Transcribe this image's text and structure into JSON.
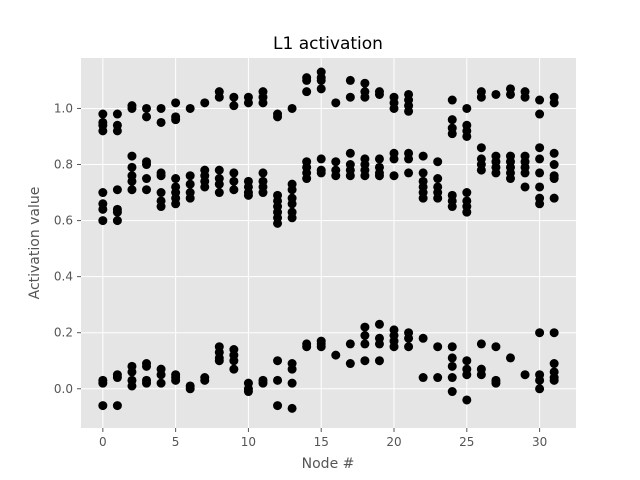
{
  "chart_data": {
    "type": "scatter",
    "title": "L1 activation",
    "xlabel": "Node #",
    "ylabel": "Activation value",
    "xlim": [
      -1.5,
      32.5
    ],
    "ylim": [
      -0.14,
      1.18
    ],
    "xticks": [
      0,
      5,
      10,
      15,
      20,
      25,
      30
    ],
    "yticks": [
      0.0,
      0.2,
      0.4,
      0.6,
      0.8,
      1.0
    ],
    "xtick_labels": [
      "0",
      "5",
      "10",
      "15",
      "20",
      "25",
      "30"
    ],
    "ytick_labels": [
      "0.0",
      "0.2",
      "0.4",
      "0.6",
      "0.8",
      "1.0"
    ],
    "grid": true,
    "background_color": "#e5e5e5",
    "marker_color": "#000000",
    "points": [
      [
        0,
        0.98
      ],
      [
        0,
        0.95
      ],
      [
        0,
        0.94
      ],
      [
        0,
        0.92
      ],
      [
        0,
        0.7
      ],
      [
        0,
        0.66
      ],
      [
        0,
        0.64
      ],
      [
        0,
        0.6
      ],
      [
        0,
        0.03
      ],
      [
        0,
        0.02
      ],
      [
        0,
        -0.06
      ],
      [
        1,
        0.98
      ],
      [
        1,
        0.94
      ],
      [
        1,
        0.92
      ],
      [
        1,
        0.71
      ],
      [
        1,
        0.64
      ],
      [
        1,
        0.63
      ],
      [
        1,
        0.6
      ],
      [
        1,
        0.05
      ],
      [
        1,
        0.04
      ],
      [
        1,
        -0.06
      ],
      [
        2,
        1.01
      ],
      [
        2,
        1.0
      ],
      [
        2,
        0.83
      ],
      [
        2,
        0.79
      ],
      [
        2,
        0.76
      ],
      [
        2,
        0.74
      ],
      [
        2,
        0.71
      ],
      [
        2,
        0.08
      ],
      [
        2,
        0.06
      ],
      [
        2,
        0.03
      ],
      [
        2,
        0.01
      ],
      [
        3,
        1.0
      ],
      [
        3,
        0.97
      ],
      [
        3,
        0.81
      ],
      [
        3,
        0.8
      ],
      [
        3,
        0.75
      ],
      [
        3,
        0.71
      ],
      [
        3,
        0.09
      ],
      [
        3,
        0.08
      ],
      [
        3,
        0.03
      ],
      [
        3,
        0.02
      ],
      [
        4,
        1.0
      ],
      [
        4,
        0.95
      ],
      [
        4,
        0.77
      ],
      [
        4,
        0.76
      ],
      [
        4,
        0.7
      ],
      [
        4,
        0.67
      ],
      [
        4,
        0.65
      ],
      [
        4,
        0.07
      ],
      [
        4,
        0.05
      ],
      [
        4,
        0.02
      ],
      [
        5,
        1.02
      ],
      [
        5,
        0.97
      ],
      [
        5,
        0.96
      ],
      [
        5,
        0.75
      ],
      [
        5,
        0.72
      ],
      [
        5,
        0.7
      ],
      [
        5,
        0.68
      ],
      [
        5,
        0.66
      ],
      [
        5,
        0.05
      ],
      [
        5,
        0.04
      ],
      [
        5,
        0.03
      ],
      [
        6,
        1.0
      ],
      [
        6,
        0.76
      ],
      [
        6,
        0.73
      ],
      [
        6,
        0.7
      ],
      [
        6,
        0.68
      ],
      [
        6,
        0.01
      ],
      [
        6,
        0.0
      ],
      [
        7,
        1.02
      ],
      [
        7,
        0.78
      ],
      [
        7,
        0.76
      ],
      [
        7,
        0.74
      ],
      [
        7,
        0.72
      ],
      [
        7,
        0.04
      ],
      [
        7,
        0.03
      ],
      [
        8,
        1.06
      ],
      [
        8,
        1.04
      ],
      [
        8,
        0.78
      ],
      [
        8,
        0.75
      ],
      [
        8,
        0.73
      ],
      [
        8,
        0.7
      ],
      [
        8,
        0.15
      ],
      [
        8,
        0.13
      ],
      [
        8,
        0.11
      ],
      [
        8,
        0.1
      ],
      [
        9,
        1.04
      ],
      [
        9,
        1.01
      ],
      [
        9,
        0.77
      ],
      [
        9,
        0.74
      ],
      [
        9,
        0.71
      ],
      [
        9,
        0.14
      ],
      [
        9,
        0.12
      ],
      [
        9,
        0.1
      ],
      [
        9,
        0.07
      ],
      [
        10,
        1.04
      ],
      [
        10,
        1.02
      ],
      [
        10,
        0.74
      ],
      [
        10,
        0.72
      ],
      [
        10,
        0.7
      ],
      [
        10,
        0.69
      ],
      [
        10,
        0.02
      ],
      [
        10,
        0.0
      ],
      [
        10,
        -0.01
      ],
      [
        11,
        1.06
      ],
      [
        11,
        1.04
      ],
      [
        11,
        1.02
      ],
      [
        11,
        0.77
      ],
      [
        11,
        0.74
      ],
      [
        11,
        0.72
      ],
      [
        11,
        0.7
      ],
      [
        11,
        0.03
      ],
      [
        11,
        0.02
      ],
      [
        12,
        0.98
      ],
      [
        12,
        0.97
      ],
      [
        12,
        0.69
      ],
      [
        12,
        0.67
      ],
      [
        12,
        0.65
      ],
      [
        12,
        0.63
      ],
      [
        12,
        0.61
      ],
      [
        12,
        0.59
      ],
      [
        12,
        0.1
      ],
      [
        12,
        0.03
      ],
      [
        12,
        -0.06
      ],
      [
        13,
        1.0
      ],
      [
        13,
        0.73
      ],
      [
        13,
        0.71
      ],
      [
        13,
        0.68
      ],
      [
        13,
        0.66
      ],
      [
        13,
        0.63
      ],
      [
        13,
        0.61
      ],
      [
        13,
        0.09
      ],
      [
        13,
        0.07
      ],
      [
        13,
        0.02
      ],
      [
        13,
        -0.07
      ],
      [
        14,
        1.11
      ],
      [
        14,
        1.1
      ],
      [
        14,
        1.06
      ],
      [
        14,
        0.81
      ],
      [
        14,
        0.79
      ],
      [
        14,
        0.77
      ],
      [
        14,
        0.75
      ],
      [
        14,
        0.16
      ],
      [
        14,
        0.15
      ],
      [
        15,
        1.13
      ],
      [
        15,
        1.11
      ],
      [
        15,
        1.1
      ],
      [
        15,
        1.07
      ],
      [
        15,
        0.82
      ],
      [
        15,
        0.78
      ],
      [
        15,
        0.77
      ],
      [
        15,
        0.17
      ],
      [
        15,
        0.16
      ],
      [
        15,
        0.15
      ],
      [
        16,
        1.02
      ],
      [
        16,
        0.81
      ],
      [
        16,
        0.78
      ],
      [
        16,
        0.76
      ],
      [
        16,
        0.12
      ],
      [
        17,
        1.1
      ],
      [
        17,
        1.04
      ],
      [
        17,
        0.84
      ],
      [
        17,
        0.8
      ],
      [
        17,
        0.78
      ],
      [
        17,
        0.76
      ],
      [
        17,
        0.16
      ],
      [
        17,
        0.09
      ],
      [
        18,
        1.09
      ],
      [
        18,
        1.06
      ],
      [
        18,
        1.04
      ],
      [
        18,
        0.82
      ],
      [
        18,
        0.8
      ],
      [
        18,
        0.78
      ],
      [
        18,
        0.76
      ],
      [
        18,
        0.22
      ],
      [
        18,
        0.19
      ],
      [
        18,
        0.16
      ],
      [
        18,
        0.1
      ],
      [
        19,
        1.06
      ],
      [
        19,
        1.05
      ],
      [
        19,
        0.82
      ],
      [
        19,
        0.79
      ],
      [
        19,
        0.77
      ],
      [
        19,
        0.76
      ],
      [
        19,
        0.23
      ],
      [
        19,
        0.18
      ],
      [
        19,
        0.16
      ],
      [
        19,
        0.1
      ],
      [
        20,
        1.04
      ],
      [
        20,
        1.02
      ],
      [
        20,
        1.0
      ],
      [
        20,
        0.84
      ],
      [
        20,
        0.82
      ],
      [
        20,
        0.76
      ],
      [
        20,
        0.21
      ],
      [
        20,
        0.19
      ],
      [
        20,
        0.17
      ],
      [
        20,
        0.15
      ],
      [
        21,
        1.05
      ],
      [
        21,
        1.03
      ],
      [
        21,
        1.01
      ],
      [
        21,
        0.99
      ],
      [
        21,
        0.84
      ],
      [
        21,
        0.82
      ],
      [
        21,
        0.77
      ],
      [
        21,
        0.2
      ],
      [
        21,
        0.18
      ],
      [
        21,
        0.15
      ],
      [
        22,
        0.83
      ],
      [
        22,
        0.77
      ],
      [
        22,
        0.74
      ],
      [
        22,
        0.72
      ],
      [
        22,
        0.7
      ],
      [
        22,
        0.68
      ],
      [
        22,
        0.18
      ],
      [
        22,
        0.04
      ],
      [
        23,
        0.81
      ],
      [
        23,
        0.75
      ],
      [
        23,
        0.72
      ],
      [
        23,
        0.7
      ],
      [
        23,
        0.68
      ],
      [
        23,
        0.15
      ],
      [
        23,
        0.04
      ],
      [
        24,
        1.03
      ],
      [
        24,
        0.96
      ],
      [
        24,
        0.93
      ],
      [
        24,
        0.91
      ],
      [
        24,
        0.69
      ],
      [
        24,
        0.67
      ],
      [
        24,
        0.65
      ],
      [
        24,
        0.15
      ],
      [
        24,
        0.11
      ],
      [
        24,
        0.08
      ],
      [
        24,
        0.04
      ],
      [
        24,
        -0.01
      ],
      [
        25,
        1.0
      ],
      [
        25,
        0.94
      ],
      [
        25,
        0.92
      ],
      [
        25,
        0.9
      ],
      [
        25,
        0.7
      ],
      [
        25,
        0.67
      ],
      [
        25,
        0.65
      ],
      [
        25,
        0.63
      ],
      [
        25,
        0.1
      ],
      [
        25,
        0.07
      ],
      [
        25,
        0.05
      ],
      [
        25,
        -0.04
      ],
      [
        26,
        1.06
      ],
      [
        26,
        1.04
      ],
      [
        26,
        0.86
      ],
      [
        26,
        0.82
      ],
      [
        26,
        0.8
      ],
      [
        26,
        0.78
      ],
      [
        26,
        0.16
      ],
      [
        26,
        0.07
      ],
      [
        26,
        0.05
      ],
      [
        27,
        1.05
      ],
      [
        27,
        0.83
      ],
      [
        27,
        0.81
      ],
      [
        27,
        0.79
      ],
      [
        27,
        0.77
      ],
      [
        27,
        0.15
      ],
      [
        27,
        0.03
      ],
      [
        27,
        0.02
      ],
      [
        28,
        1.07
      ],
      [
        28,
        1.05
      ],
      [
        28,
        0.83
      ],
      [
        28,
        0.81
      ],
      [
        28,
        0.79
      ],
      [
        28,
        0.77
      ],
      [
        28,
        0.75
      ],
      [
        28,
        0.11
      ],
      [
        29,
        1.06
      ],
      [
        29,
        1.04
      ],
      [
        29,
        0.83
      ],
      [
        29,
        0.81
      ],
      [
        29,
        0.79
      ],
      [
        29,
        0.77
      ],
      [
        29,
        0.72
      ],
      [
        29,
        0.05
      ],
      [
        30,
        1.03
      ],
      [
        30,
        0.98
      ],
      [
        30,
        0.86
      ],
      [
        30,
        0.82
      ],
      [
        30,
        0.77
      ],
      [
        30,
        0.72
      ],
      [
        30,
        0.68
      ],
      [
        30,
        0.66
      ],
      [
        30,
        0.2
      ],
      [
        30,
        0.05
      ],
      [
        30,
        0.03
      ],
      [
        30,
        0.0
      ],
      [
        31,
        1.04
      ],
      [
        31,
        1.02
      ],
      [
        31,
        0.84
      ],
      [
        31,
        0.8
      ],
      [
        31,
        0.76
      ],
      [
        31,
        0.75
      ],
      [
        31,
        0.68
      ],
      [
        31,
        0.2
      ],
      [
        31,
        0.09
      ],
      [
        31,
        0.06
      ],
      [
        31,
        0.04
      ],
      [
        31,
        0.03
      ]
    ]
  }
}
